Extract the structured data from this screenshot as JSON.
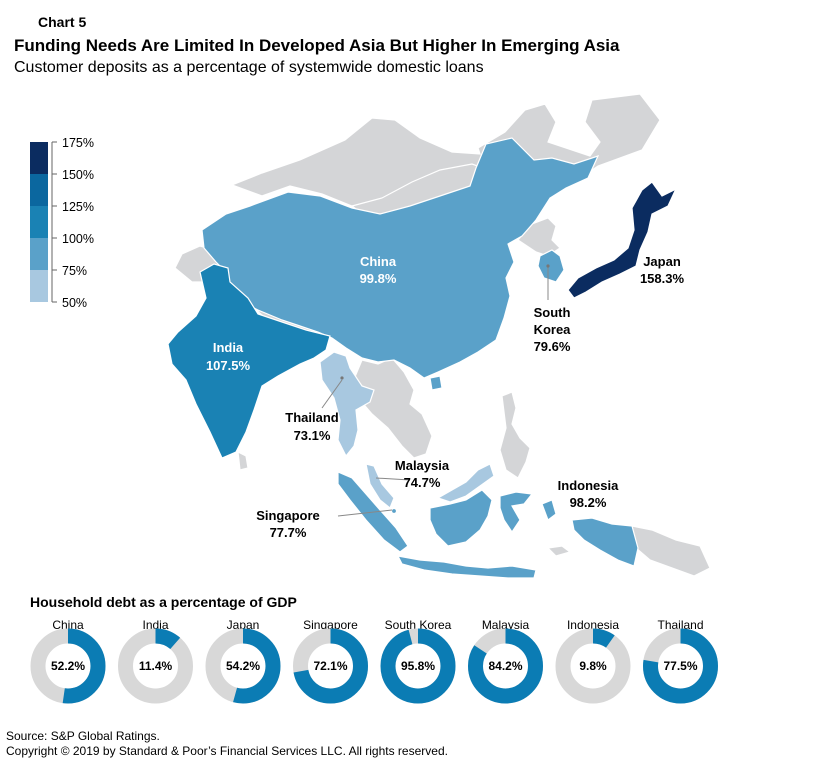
{
  "header": {
    "chart_label": "Chart 5",
    "title": "Funding Needs Are Limited In Developed Asia But Higher In Emerging Asia",
    "subtitle": "Customer deposits as a percentage of systemwide domestic loans"
  },
  "colors": {
    "no_data": "#d4d5d7",
    "scale": [
      "#a8c8e0",
      "#5aa1c9",
      "#1a82b4",
      "#0b679f",
      "#0a4d86",
      "#0b2c60"
    ],
    "donut_fill": "#0b7cb4",
    "donut_track": "#d8d8d8"
  },
  "chart_data": [
    {
      "type": "map",
      "title": "Customer deposits as a percentage of systemwide domestic loans",
      "legend": {
        "ticks": [
          "175%",
          "150%",
          "125%",
          "100%",
          "75%",
          "50%"
        ],
        "bins": [
          [
            150,
            175
          ],
          [
            125,
            150
          ],
          [
            100,
            125
          ],
          [
            75,
            100
          ],
          [
            50,
            75
          ]
        ]
      },
      "regions": [
        {
          "country": "China",
          "value": 99.8,
          "label": "99.8%"
        },
        {
          "country": "India",
          "value": 107.5,
          "label": "107.5%"
        },
        {
          "country": "Japan",
          "value": 158.3,
          "label": "158.3%"
        },
        {
          "country": "South Korea",
          "name_lines": [
            "South",
            "Korea"
          ],
          "value": 79.6,
          "label": "79.6%"
        },
        {
          "country": "Thailand",
          "value": 73.1,
          "label": "73.1%"
        },
        {
          "country": "Malaysia",
          "value": 74.7,
          "label": "74.7%"
        },
        {
          "country": "Indonesia",
          "value": 98.2,
          "label": "98.2%"
        },
        {
          "country": "Singapore",
          "value": 77.7,
          "label": "77.7%"
        }
      ]
    },
    {
      "type": "donut",
      "title": "Household debt as a percentage of GDP",
      "categories": [
        "China",
        "India",
        "Japan",
        "Singapore",
        "South Korea",
        "Malaysia",
        "Indonesia",
        "Thailand"
      ],
      "values": [
        52.2,
        11.4,
        54.2,
        72.1,
        95.8,
        84.2,
        9.8,
        77.5
      ],
      "labels": [
        "52.2%",
        "11.4%",
        "54.2%",
        "72.1%",
        "95.8%",
        "84.2%",
        "9.8%",
        "77.5%"
      ]
    }
  ],
  "footer": {
    "source": "Source: S&P Global Ratings.",
    "copyright": "Copyright © 2019 by Standard & Poor’s Financial Services LLC. All rights reserved."
  }
}
